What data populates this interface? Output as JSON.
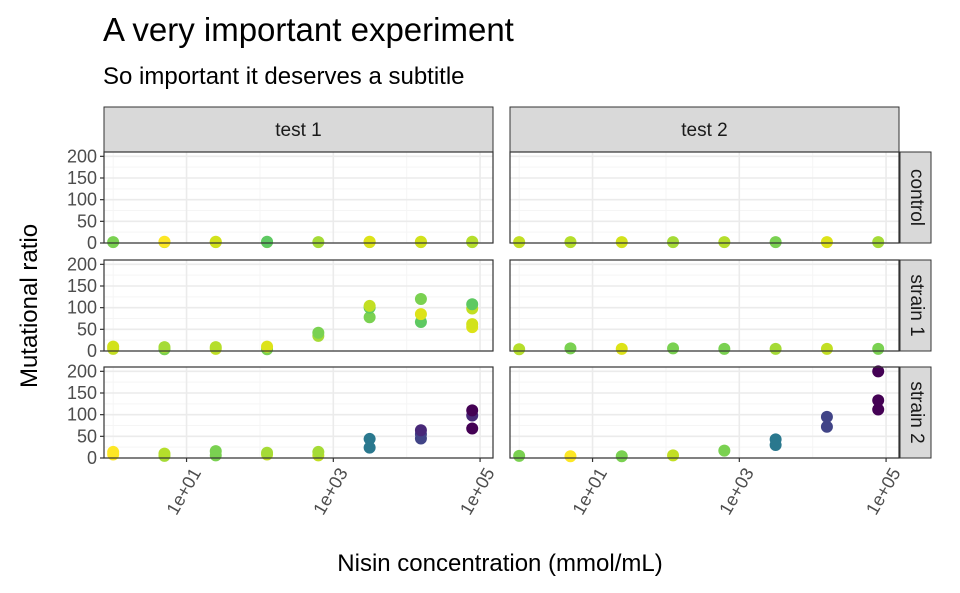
{
  "chart_data": {
    "type": "scatter",
    "title": "A very important experiment",
    "subtitle": "So important it deserves a subtitle",
    "xlabel": "Nisin concentration (mmol/mL)",
    "ylabel": "Mutational ratio",
    "x_scale": "log10",
    "xlim": [
      0.75,
      150000
    ],
    "ylim": [
      0,
      210
    ],
    "x_ticks": [
      10,
      1000,
      100000
    ],
    "x_tick_labels": [
      "1e+01",
      "1e+03",
      "1e+05"
    ],
    "y_ticks": [
      0,
      50,
      100,
      150,
      200
    ],
    "y_tick_labels": [
      "0",
      "50",
      "100",
      "150",
      "200"
    ],
    "grid": true,
    "legend": "none",
    "facet_columns": [
      "test 1",
      "test 2"
    ],
    "facet_rows": [
      "control",
      "strain 1",
      "strain 2"
    ],
    "colors": {
      "low": "#fde725",
      "mid_low": "#7ad151",
      "mid": "#22a884",
      "mid_high": "#2a788e",
      "high_mid": "#414487",
      "high": "#440154",
      "strip_fill": "#d9d9d9",
      "grid_major": "#ebebeb",
      "grid_minor": "#f5f5f5"
    },
    "panels": [
      {
        "column": "test 1",
        "row": "control",
        "points": [
          {
            "x": 1,
            "y": 2,
            "color": "#7ad151"
          },
          {
            "x": 5,
            "y": 2,
            "color": "#c2df23"
          },
          {
            "x": 5,
            "y": 3,
            "color": "#fde725"
          },
          {
            "x": 25,
            "y": 2,
            "color": "#c2df23"
          },
          {
            "x": 25,
            "y": 3,
            "color": "#d2e21b"
          },
          {
            "x": 125,
            "y": 2,
            "color": "#7ad151"
          },
          {
            "x": 125,
            "y": 3,
            "color": "#5ec962"
          },
          {
            "x": 625,
            "y": 2,
            "color": "#a5db36"
          },
          {
            "x": 3125,
            "y": 2,
            "color": "#c2df23"
          },
          {
            "x": 3125,
            "y": 3,
            "color": "#dde318"
          },
          {
            "x": 15625,
            "y": 2,
            "color": "#c2df23"
          },
          {
            "x": 15625,
            "y": 3,
            "color": "#d2e21b"
          },
          {
            "x": 78125,
            "y": 2,
            "color": "#a5db36"
          },
          {
            "x": 78125,
            "y": 3,
            "color": "#b5de2b"
          }
        ]
      },
      {
        "column": "test 2",
        "row": "control",
        "points": [
          {
            "x": 1,
            "y": 2,
            "color": "#c2df23"
          },
          {
            "x": 5,
            "y": 2,
            "color": "#b5de2b"
          },
          {
            "x": 25,
            "y": 2,
            "color": "#d2e21b"
          },
          {
            "x": 125,
            "y": 2,
            "color": "#a5db36"
          },
          {
            "x": 625,
            "y": 2,
            "color": "#b5de2b"
          },
          {
            "x": 3125,
            "y": 2,
            "color": "#7ad151"
          },
          {
            "x": 15625,
            "y": 2,
            "color": "#dde318"
          },
          {
            "x": 78125,
            "y": 2,
            "color": "#a5db36"
          }
        ]
      },
      {
        "column": "test 1",
        "row": "strain 1",
        "points": [
          {
            "x": 1,
            "y": 5,
            "color": "#c2df23"
          },
          {
            "x": 1,
            "y": 10,
            "color": "#d2e21b"
          },
          {
            "x": 5,
            "y": 4,
            "color": "#7ad151"
          },
          {
            "x": 5,
            "y": 9,
            "color": "#a5db36"
          },
          {
            "x": 25,
            "y": 5,
            "color": "#c2df23"
          },
          {
            "x": 25,
            "y": 9,
            "color": "#b5de2b"
          },
          {
            "x": 125,
            "y": 4,
            "color": "#7ad151"
          },
          {
            "x": 125,
            "y": 10,
            "color": "#dde318"
          },
          {
            "x": 625,
            "y": 35,
            "color": "#a5db36"
          },
          {
            "x": 625,
            "y": 42,
            "color": "#7ad151"
          },
          {
            "x": 3125,
            "y": 78,
            "color": "#7ad151"
          },
          {
            "x": 3125,
            "y": 100,
            "color": "#5ec962"
          },
          {
            "x": 3125,
            "y": 104,
            "color": "#c2df23"
          },
          {
            "x": 15625,
            "y": 67,
            "color": "#5ec962"
          },
          {
            "x": 15625,
            "y": 85,
            "color": "#dde318"
          },
          {
            "x": 15625,
            "y": 120,
            "color": "#7ad151"
          },
          {
            "x": 78125,
            "y": 55,
            "color": "#dde318"
          },
          {
            "x": 78125,
            "y": 62,
            "color": "#d2e21b"
          },
          {
            "x": 78125,
            "y": 98,
            "color": "#c2df23"
          },
          {
            "x": 78125,
            "y": 108,
            "color": "#5ec962"
          }
        ]
      },
      {
        "column": "test 2",
        "row": "strain 1",
        "points": [
          {
            "x": 1,
            "y": 4,
            "color": "#b5de2b"
          },
          {
            "x": 5,
            "y": 6,
            "color": "#7ad151"
          },
          {
            "x": 25,
            "y": 5,
            "color": "#dde318"
          },
          {
            "x": 125,
            "y": 6,
            "color": "#7ad151"
          },
          {
            "x": 625,
            "y": 5,
            "color": "#7ad151"
          },
          {
            "x": 3125,
            "y": 5,
            "color": "#a5db36"
          },
          {
            "x": 15625,
            "y": 5,
            "color": "#c2df23"
          },
          {
            "x": 78125,
            "y": 5,
            "color": "#7ad151"
          }
        ]
      },
      {
        "column": "test 1",
        "row": "strain 2",
        "points": [
          {
            "x": 1,
            "y": 8,
            "color": "#fde725"
          },
          {
            "x": 1,
            "y": 14,
            "color": "#fde725"
          },
          {
            "x": 5,
            "y": 5,
            "color": "#a5db36"
          },
          {
            "x": 5,
            "y": 10,
            "color": "#b5de2b"
          },
          {
            "x": 25,
            "y": 6,
            "color": "#7ad151"
          },
          {
            "x": 25,
            "y": 16,
            "color": "#7ad151"
          },
          {
            "x": 125,
            "y": 8,
            "color": "#c2df23"
          },
          {
            "x": 125,
            "y": 12,
            "color": "#a5db36"
          },
          {
            "x": 625,
            "y": 6,
            "color": "#c2df23"
          },
          {
            "x": 625,
            "y": 14,
            "color": "#a5db36"
          },
          {
            "x": 3125,
            "y": 24,
            "color": "#2a788e"
          },
          {
            "x": 3125,
            "y": 44,
            "color": "#2a788e"
          },
          {
            "x": 15625,
            "y": 45,
            "color": "#414487"
          },
          {
            "x": 15625,
            "y": 55,
            "color": "#414487"
          },
          {
            "x": 15625,
            "y": 64,
            "color": "#482878"
          },
          {
            "x": 78125,
            "y": 68,
            "color": "#440154"
          },
          {
            "x": 78125,
            "y": 98,
            "color": "#482878"
          },
          {
            "x": 78125,
            "y": 110,
            "color": "#440154"
          }
        ]
      },
      {
        "column": "test 2",
        "row": "strain 2",
        "points": [
          {
            "x": 1,
            "y": 5,
            "color": "#7ad151"
          },
          {
            "x": 5,
            "y": 4,
            "color": "#fde725"
          },
          {
            "x": 25,
            "y": 4,
            "color": "#7ad151"
          },
          {
            "x": 125,
            "y": 6,
            "color": "#c2df23"
          },
          {
            "x": 625,
            "y": 17,
            "color": "#7ad151"
          },
          {
            "x": 3125,
            "y": 30,
            "color": "#2a788e"
          },
          {
            "x": 3125,
            "y": 43,
            "color": "#2a788e"
          },
          {
            "x": 15625,
            "y": 72,
            "color": "#414487"
          },
          {
            "x": 15625,
            "y": 95,
            "color": "#414487"
          },
          {
            "x": 78125,
            "y": 112,
            "color": "#440154"
          },
          {
            "x": 78125,
            "y": 133,
            "color": "#440154"
          },
          {
            "x": 78125,
            "y": 200,
            "color": "#440154"
          }
        ]
      }
    ]
  }
}
